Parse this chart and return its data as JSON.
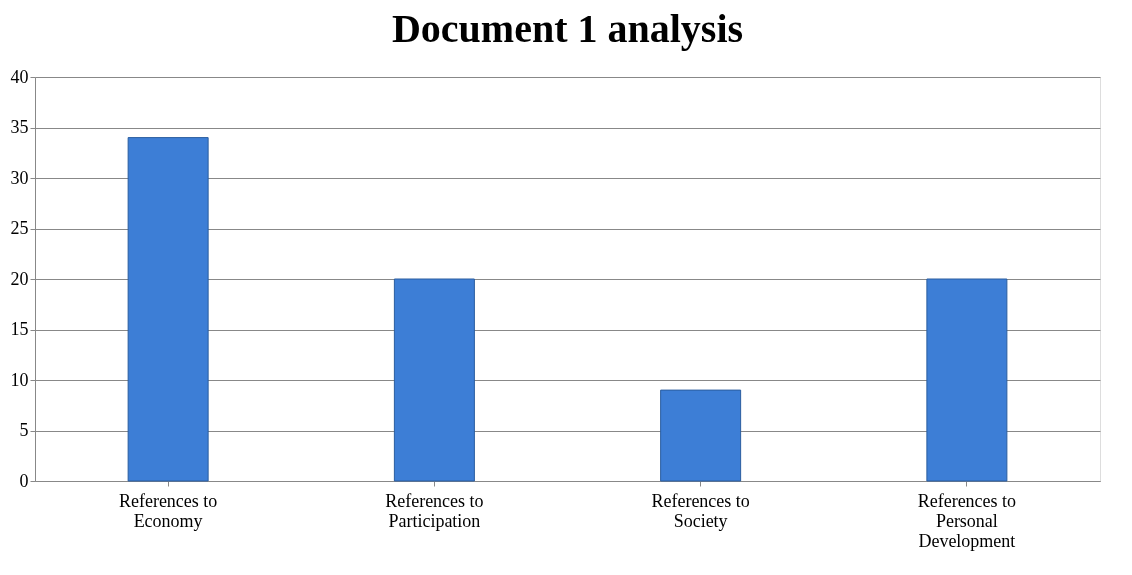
{
  "chart_data": {
    "type": "bar",
    "title": "Document 1 analysis",
    "categories": [
      "References to Economy",
      "References to Participation",
      "References to Society",
      "References to Personal Development"
    ],
    "values": [
      34,
      20,
      9,
      20
    ],
    "color": "#3d7ed6",
    "ylim": [
      0,
      40
    ],
    "yticks": [
      0,
      5,
      10,
      15,
      20,
      25,
      30,
      35,
      40
    ],
    "grid": "y"
  }
}
